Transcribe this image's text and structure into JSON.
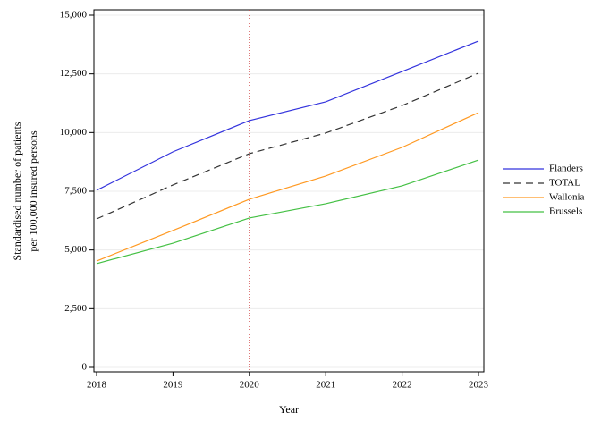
{
  "chart_data": {
    "type": "line",
    "x_label": "Year",
    "y_label": [
      "Standardised number of patients",
      "per 100,000 insured persons"
    ],
    "x": [
      2018,
      2019,
      2020,
      2021,
      2022,
      2023
    ],
    "xlim": [
      2018,
      2023
    ],
    "xticks": [
      2018,
      2019,
      2020,
      2021,
      2022,
      2023
    ],
    "ylim": [
      0,
      15000
    ],
    "yticks": [
      0,
      {
        "value": 2500,
        "label": "2,500"
      },
      {
        "value": 5000,
        "label": "5,000"
      },
      {
        "value": 7500,
        "label": "7,500"
      },
      {
        "value": 10000,
        "label": "10,000"
      },
      {
        "value": 12500,
        "label": "12,500"
      },
      {
        "value": 15000,
        "label": "15,000"
      }
    ],
    "grid": true,
    "vline": {
      "x": 2020,
      "color": "#d04040"
    },
    "legend": "right",
    "series": [
      {
        "name": "Flanders",
        "color": "#3333dd",
        "dash": false,
        "values": [
          7540,
          9180,
          10510,
          11310,
          12600,
          13900
        ]
      },
      {
        "name": "TOTAL",
        "color": "#333333",
        "dash": true,
        "values": [
          6320,
          7770,
          9100,
          9980,
          11150,
          12530
        ]
      },
      {
        "name": "Wallonia",
        "color": "#ff9922",
        "dash": false,
        "values": [
          4530,
          5830,
          7160,
          8150,
          9370,
          10850
        ]
      },
      {
        "name": "Brussels",
        "color": "#44c044",
        "dash": false,
        "values": [
          4420,
          5290,
          6360,
          6970,
          7730,
          8830
        ]
      }
    ]
  }
}
